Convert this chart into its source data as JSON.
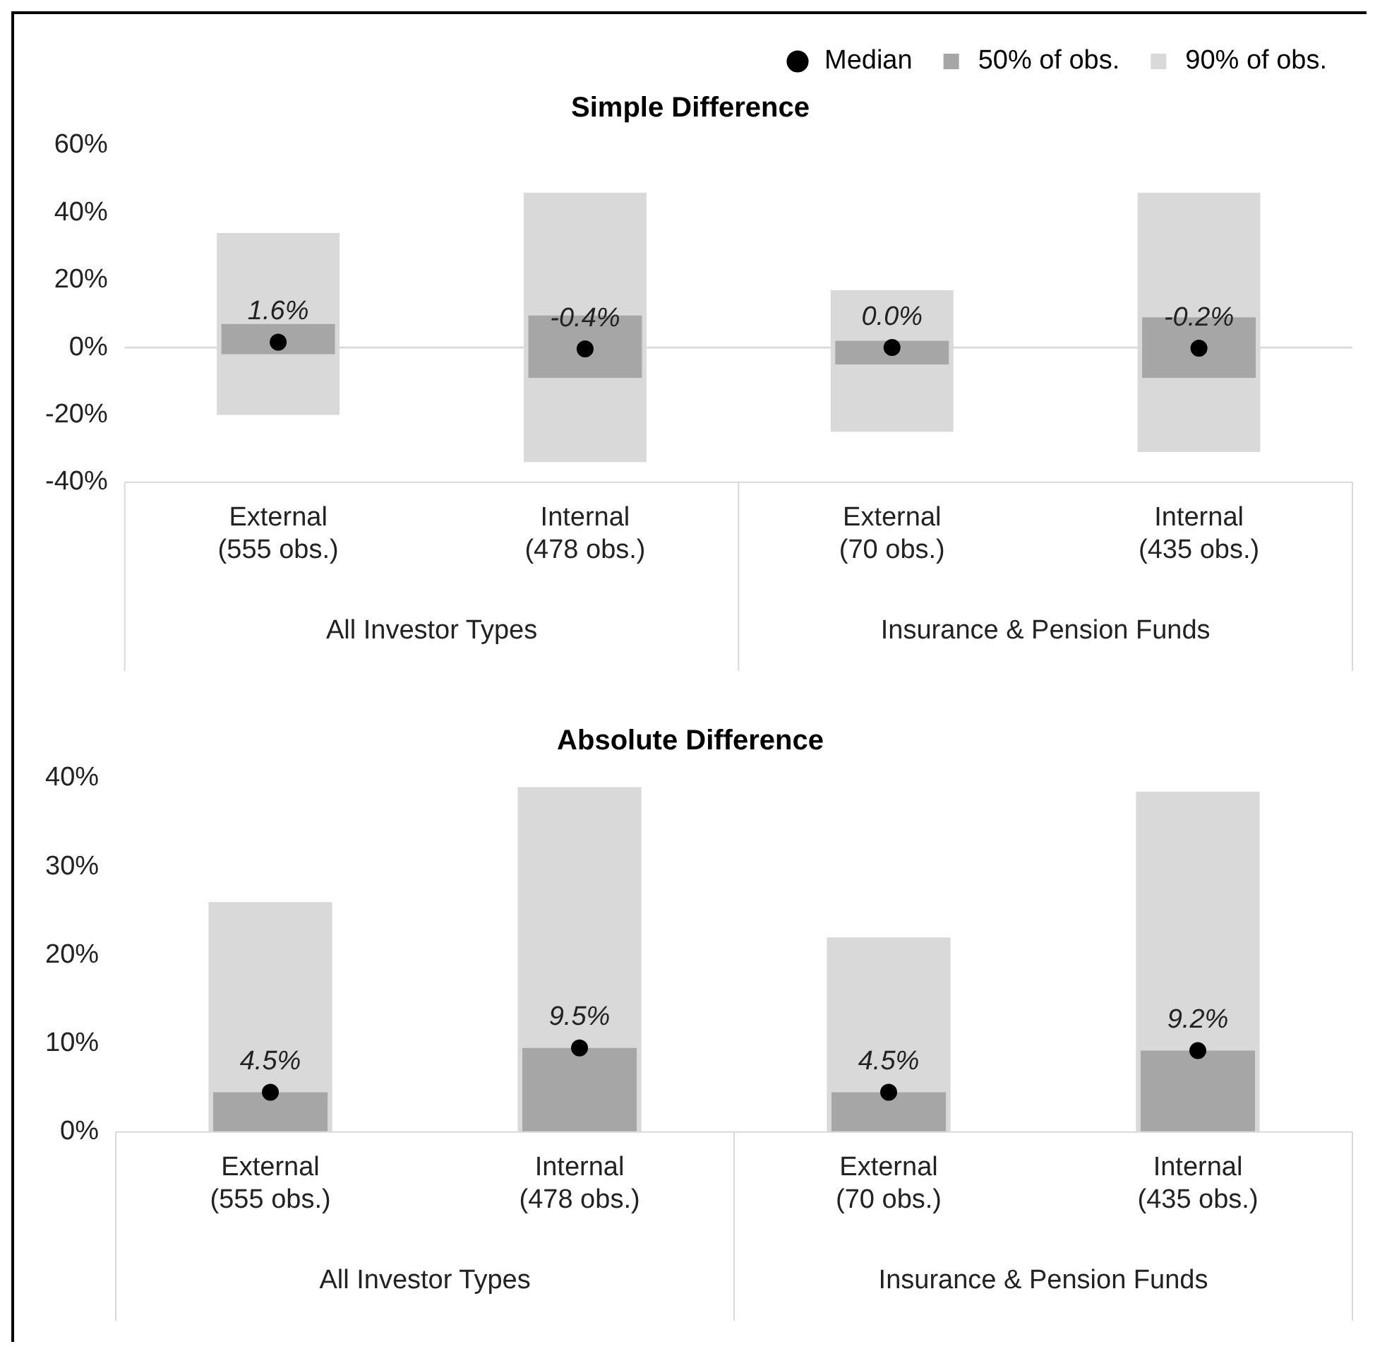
{
  "chart_data": [
    {
      "type": "bar",
      "title": "Simple Difference",
      "categories": [
        "External\n(555 obs.)",
        "Internal\n(478 obs.)",
        "External\n(70 obs.)",
        "Internal\n(435 obs.)"
      ],
      "series": [
        {
          "name": "90% of obs.",
          "color": "#d9d9d9",
          "base": [
            -20,
            -34,
            -25,
            -31
          ],
          "values": [
            54,
            80,
            42,
            77
          ]
        },
        {
          "name": "50% of obs.",
          "color": "#a6a6a6",
          "base": [
            -2,
            -9,
            -5,
            -9
          ],
          "values": [
            9,
            18.5,
            7,
            18
          ]
        },
        {
          "name": "Median",
          "type": "scatter",
          "color": "#000000",
          "x": [
            "External\n(555 obs.)",
            "Internal\n(478 obs.)",
            "External\n(70 obs.)",
            "Internal\n(435 obs.)"
          ],
          "values": [
            1.6,
            -0.4,
            0.0,
            -0.2
          ],
          "value_labels": [
            "1.6%",
            "-0.4%",
            "0.0%",
            "-0.2%"
          ]
        }
      ],
      "ylim": [
        -40,
        60
      ],
      "yticks": [
        {
          "value": -40,
          "label": "-40%"
        },
        {
          "value": -20,
          "label": "-20%"
        },
        {
          "value": 0,
          "label": "0%"
        },
        {
          "value": 20,
          "label": "20%"
        },
        {
          "value": 40,
          "label": "40%"
        },
        {
          "value": 60,
          "label": "60%"
        }
      ],
      "ref_lines": [
        {
          "axis": "y",
          "value": 0,
          "color": "#d9d9d9"
        }
      ],
      "annotations": [
        "All Investor Types",
        "Insurance & Pension Funds"
      ],
      "legend": "top right",
      "marker": "circle",
      "grid": false
    },
    {
      "type": "bar",
      "title": "Absolute Difference",
      "categories": [
        "External\n(555 obs.)",
        "Internal\n(478 obs.)",
        "External\n(70 obs.)",
        "Internal\n(435 obs.)"
      ],
      "series": [
        {
          "color": "#d9d9d9",
          "values": [
            26,
            39,
            22,
            38.5
          ]
        },
        {
          "color": "#a6a6a6",
          "values": [
            4.5,
            9.5,
            4.5,
            9.2
          ]
        },
        {
          "type": "scatter",
          "color": "#000000",
          "x": [
            "External\n(555 obs.)",
            "Internal\n(478 obs.)",
            "External\n(70 obs.)",
            "Internal\n(435 obs.)"
          ],
          "values": [
            4.5,
            9.5,
            4.5,
            9.2
          ],
          "value_labels": [
            "4.5%",
            "9.5%",
            "4.5%",
            "9.2%"
          ]
        }
      ],
      "ylim": [
        0,
        40
      ],
      "yticks": [
        {
          "value": 0,
          "label": "0%"
        },
        {
          "value": 10,
          "label": "10%"
        },
        {
          "value": 20,
          "label": "20%"
        },
        {
          "value": 30,
          "label": "30%"
        },
        {
          "value": 40,
          "label": "40%"
        }
      ],
      "annotations": [
        "All Investor Types",
        "Insurance & Pension Funds"
      ],
      "legend": false,
      "marker": "circle",
      "grid": false
    }
  ]
}
